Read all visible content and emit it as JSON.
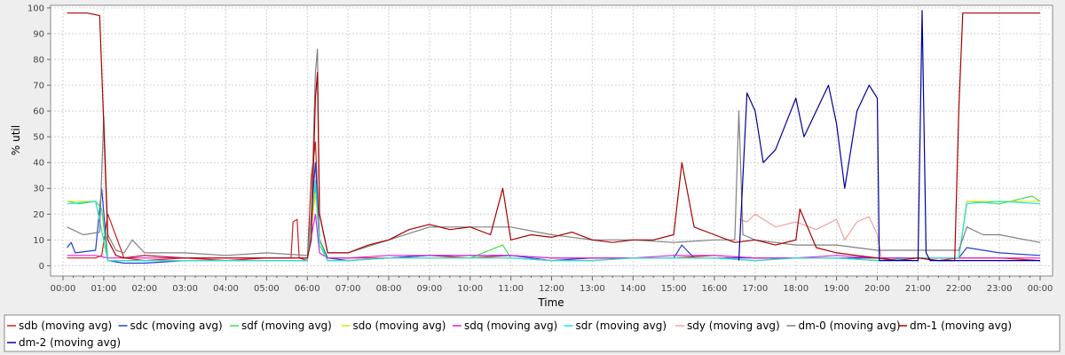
{
  "chart_data": {
    "type": "line",
    "title": "",
    "xlabel": "Time",
    "ylabel": "% util",
    "xlim": [
      0,
      24
    ],
    "ylim": [
      -4,
      101
    ],
    "y_ticks": [
      0,
      10,
      20,
      30,
      40,
      50,
      60,
      70,
      80,
      90,
      100
    ],
    "x_ticks": [
      0,
      1,
      2,
      3,
      4,
      5,
      6,
      7,
      8,
      9,
      10,
      11,
      12,
      13,
      14,
      15,
      16,
      17,
      18,
      19,
      20,
      21,
      22,
      23,
      24
    ],
    "x_tick_labels": [
      "00:00",
      "01:00",
      "02:00",
      "03:00",
      "04:00",
      "05:00",
      "06:00",
      "07:00",
      "08:00",
      "09:00",
      "10:00",
      "11:00",
      "12:00",
      "13:00",
      "14:00",
      "15:00",
      "16:00",
      "17:00",
      "18:00",
      "19:00",
      "20:00",
      "21:00",
      "22:00",
      "23:00",
      "00:00"
    ],
    "grid": true,
    "legend_position": "bottom",
    "series": [
      {
        "name": "sdb (moving avg)",
        "color": "#d02020",
        "x": [
          0.1,
          0.8,
          0.95,
          1.1,
          1.5,
          2,
          3,
          4,
          5,
          5.6,
          5.65,
          5.75,
          5.8,
          6,
          6.1,
          6.2,
          6.3,
          6.5,
          7,
          8,
          9,
          10,
          11,
          12,
          13,
          14,
          15,
          16,
          17,
          18,
          19,
          20,
          21,
          21.5,
          22,
          22.2,
          23,
          24
        ],
        "y": [
          3,
          3,
          4,
          20,
          3,
          2,
          3,
          2,
          3,
          3,
          17,
          18,
          3,
          2,
          35,
          48,
          10,
          3,
          3,
          3,
          4,
          3,
          4,
          3,
          3,
          3,
          3,
          4,
          3,
          3,
          3,
          3,
          3,
          2,
          3,
          3,
          3,
          2
        ]
      },
      {
        "name": "sdc (moving avg)",
        "color": "#2040d0",
        "x": [
          0.1,
          0.2,
          0.3,
          0.8,
          0.95,
          1.1,
          1.5,
          2,
          3,
          4,
          5,
          6,
          6.1,
          6.2,
          6.3,
          6.5,
          7,
          8,
          9,
          10,
          11,
          12,
          13,
          14,
          15,
          15.2,
          15.5,
          16,
          17,
          18,
          19,
          20,
          21,
          22,
          22.2,
          23,
          24
        ],
        "y": [
          7,
          9,
          5,
          6,
          30,
          2,
          1,
          1,
          2,
          2,
          2,
          2,
          20,
          40,
          10,
          3,
          2,
          3,
          4,
          4,
          4,
          2,
          3,
          3,
          3,
          8,
          3,
          3,
          3,
          3,
          3,
          3,
          3,
          3,
          7,
          5,
          4
        ]
      },
      {
        "name": "sdf (moving avg)",
        "color": "#40e040",
        "x": [
          0.1,
          0.4,
          0.8,
          0.95,
          1.1,
          2,
          3,
          4,
          5,
          6,
          6.2,
          6.3,
          6.5,
          7,
          8,
          9,
          10,
          10.8,
          11,
          12,
          13,
          14,
          15,
          16,
          17,
          18,
          19,
          20,
          21,
          22,
          22.2,
          23,
          23.8,
          24
        ],
        "y": [
          25,
          24,
          25,
          22,
          2,
          2,
          2,
          2,
          2,
          2,
          30,
          10,
          2,
          2,
          3,
          3,
          3,
          8,
          3,
          2,
          2,
          3,
          3,
          3,
          2,
          3,
          3,
          2,
          3,
          3,
          25,
          24,
          27,
          25
        ]
      },
      {
        "name": "sdo (moving avg)",
        "color": "#e0e020",
        "x": [
          0.1,
          0.8,
          1.1,
          2,
          3,
          4,
          5,
          6,
          6.2,
          6.3,
          6.5,
          7,
          8,
          9,
          10,
          11,
          12,
          13,
          14,
          15,
          16,
          17,
          18,
          19,
          20,
          21,
          22,
          22.2,
          23,
          24
        ],
        "y": [
          25,
          25,
          2,
          2,
          2,
          2,
          2,
          2,
          28,
          8,
          2,
          2,
          3,
          3,
          3,
          3,
          2,
          2,
          3,
          3,
          3,
          2,
          3,
          3,
          2,
          3,
          3,
          25,
          25,
          25
        ]
      },
      {
        "name": "sdq (moving avg)",
        "color": "#e020e0",
        "x": [
          0.1,
          0.8,
          1.1,
          2,
          3,
          4,
          5,
          6,
          6.2,
          6.3,
          6.5,
          7,
          8,
          9,
          10,
          11,
          12,
          13,
          14,
          15,
          16,
          17,
          18,
          19,
          20,
          21,
          22,
          23,
          24
        ],
        "y": [
          4,
          4,
          3,
          3,
          3,
          3,
          3,
          3,
          20,
          5,
          3,
          3,
          4,
          4,
          4,
          4,
          3,
          3,
          3,
          4,
          4,
          3,
          3,
          4,
          3,
          3,
          3,
          3,
          3
        ]
      },
      {
        "name": "sdr (moving avg)",
        "color": "#20e0e0",
        "x": [
          0.1,
          0.8,
          1.1,
          2,
          3,
          4,
          5,
          6,
          6.2,
          6.3,
          6.5,
          7,
          8,
          9,
          10,
          11,
          12,
          13,
          14,
          15,
          16,
          17,
          18,
          19,
          20,
          21,
          22,
          22.2,
          23,
          24
        ],
        "y": [
          24,
          25,
          2,
          2,
          2,
          2,
          2,
          2,
          33,
          8,
          2,
          2,
          3,
          3,
          3,
          3,
          2,
          2,
          3,
          3,
          3,
          2,
          3,
          3,
          2,
          3,
          3,
          24,
          25,
          24
        ]
      },
      {
        "name": "sdy (moving avg)",
        "color": "#f0a0a0",
        "x": [
          16.6,
          16.8,
          17,
          17.5,
          18,
          18.5,
          19,
          19.2,
          19.5,
          19.8,
          20,
          20.1
        ],
        "y": [
          18,
          17,
          20,
          15,
          17,
          14,
          18,
          10,
          17,
          19,
          12,
          3
        ]
      },
      {
        "name": "dm-0 (moving avg)",
        "color": "#808080",
        "x": [
          0.1,
          0.5,
          0.9,
          1.0,
          1.1,
          1.3,
          1.5,
          1.7,
          2,
          3,
          4,
          5,
          6,
          6.1,
          6.2,
          6.25,
          6.3,
          6.5,
          7,
          8,
          9,
          10,
          11,
          12,
          13,
          14,
          15,
          16,
          16.5,
          16.6,
          16.7,
          17,
          18,
          19,
          20,
          21,
          22,
          22.2,
          22.6,
          23,
          24
        ],
        "y": [
          15,
          12,
          13,
          58,
          12,
          6,
          5,
          10,
          5,
          5,
          4,
          5,
          4,
          20,
          75,
          84,
          20,
          5,
          5,
          10,
          15,
          15,
          15,
          12,
          10,
          10,
          9,
          10,
          10,
          60,
          12,
          10,
          8,
          8,
          6,
          6,
          6,
          15,
          12,
          12,
          9
        ]
      },
      {
        "name": "dm-1 (moving avg)",
        "color": "#aa0000",
        "x": [
          0.1,
          0.6,
          0.9,
          1.0,
          1.1,
          1.3,
          1.5,
          2,
          3,
          4,
          5,
          5.5,
          6,
          6.1,
          6.2,
          6.25,
          6.3,
          6.5,
          7,
          7.5,
          8,
          8.5,
          9,
          9.5,
          10,
          10.5,
          10.8,
          11,
          11.5,
          12,
          12.5,
          13,
          13.5,
          14,
          14.5,
          15,
          15.2,
          15.5,
          16,
          16.5,
          17,
          17.5,
          18,
          18.1,
          18.5,
          19,
          19.5,
          20,
          20.5,
          21,
          21.5,
          21.9,
          22,
          22.1,
          22.5,
          23,
          23.5,
          24
        ],
        "y": [
          98,
          98,
          97,
          55,
          10,
          4,
          3,
          4,
          3,
          3,
          3,
          3,
          3,
          10,
          65,
          75,
          20,
          5,
          5,
          8,
          10,
          14,
          16,
          14,
          15,
          12,
          30,
          10,
          12,
          11,
          13,
          10,
          9,
          10,
          10,
          12,
          40,
          15,
          12,
          9,
          10,
          8,
          10,
          22,
          7,
          5,
          4,
          3,
          2,
          3,
          2,
          2,
          60,
          98,
          98,
          98,
          98,
          98
        ]
      },
      {
        "name": "dm-2 (moving avg)",
        "color": "#000099",
        "x": [
          16.6,
          16.8,
          17,
          17.2,
          17.5,
          17.8,
          18,
          18.2,
          18.5,
          18.8,
          19,
          19.2,
          19.5,
          19.8,
          20,
          20.05,
          20.5,
          21,
          21.1,
          21.2,
          21.3,
          22,
          24
        ],
        "y": [
          2,
          67,
          60,
          40,
          45,
          57,
          65,
          50,
          60,
          70,
          55,
          30,
          60,
          70,
          65,
          2,
          2,
          2,
          99,
          5,
          2,
          2,
          2
        ]
      }
    ]
  }
}
